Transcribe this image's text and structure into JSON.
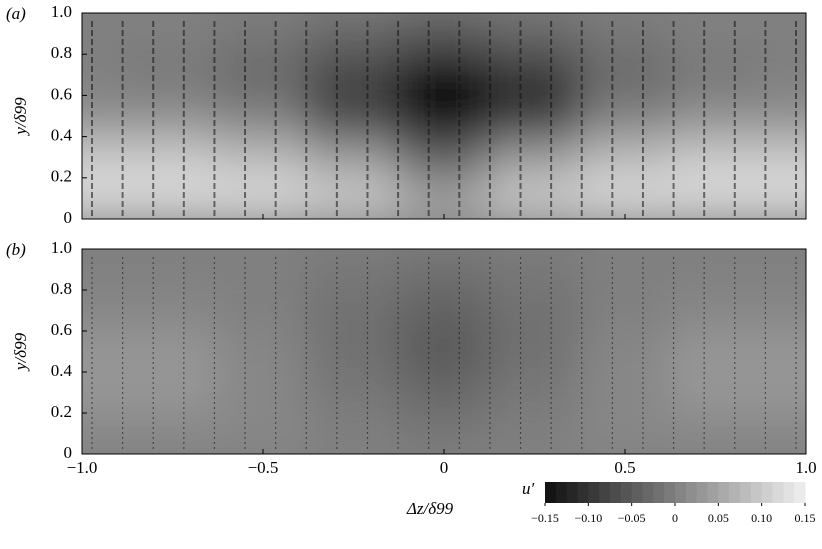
{
  "chart_data": [
    {
      "type": "heatmap",
      "label": "(a)",
      "ylabel": "y/δ99",
      "x": [
        -1,
        -0.75,
        -0.5,
        -0.25,
        0,
        0.25,
        0.5,
        0.75,
        1
      ],
      "y": [
        0.1,
        0.3,
        0.5,
        0.7,
        0.9
      ],
      "values": [
        [
          0.12,
          0.12,
          0.12,
          0.1,
          0.05,
          0.1,
          0.12,
          0.12,
          0.12
        ],
        [
          0.1,
          0.1,
          0.08,
          0.04,
          -0.04,
          0.04,
          0.08,
          0.1,
          0.1
        ],
        [
          0.02,
          0.02,
          0,
          -0.08,
          -0.15,
          -0.1,
          0,
          0.02,
          0.02
        ],
        [
          0,
          -0.01,
          -0.03,
          -0.08,
          -0.15,
          -0.1,
          -0.03,
          -0.01,
          0
        ],
        [
          0,
          0,
          -0.01,
          -0.03,
          -0.05,
          -0.03,
          -0.01,
          0,
          0
        ]
      ],
      "xlim": [
        -1,
        1
      ],
      "xticks": [
        -1,
        -0.5,
        0,
        0.5,
        1
      ],
      "ylim": [
        0,
        1
      ],
      "yticks": [
        0,
        0.2,
        0.4,
        0.6,
        0.8,
        {
          "value": 1,
          "label": "1.0"
        }
      ]
    },
    {
      "type": "heatmap",
      "label": "(b)",
      "ylabel": "y/δ99",
      "xlabel": "Δz/δ99",
      "x": [
        -1,
        -0.75,
        -0.5,
        -0.25,
        0,
        0.25,
        0.5,
        0.75,
        1
      ],
      "y": [
        0.1,
        0.3,
        0.5,
        0.7,
        0.9
      ],
      "values": [
        [
          0.01,
          0.01,
          0.01,
          0,
          -0.01,
          0,
          0.01,
          0.01,
          0.01
        ],
        [
          0.03,
          0.03,
          0.01,
          -0.01,
          -0.03,
          -0.01,
          0.01,
          0.03,
          0.03
        ],
        [
          0.03,
          0.03,
          0.01,
          -0.02,
          -0.05,
          -0.02,
          0.01,
          0.03,
          0.03
        ],
        [
          0.01,
          0.01,
          0,
          -0.02,
          -0.04,
          -0.02,
          0,
          0.01,
          0.01
        ],
        [
          0,
          0,
          0,
          -0.01,
          -0.02,
          -0.01,
          0,
          0,
          0
        ]
      ],
      "xlim": [
        -1,
        1
      ],
      "xticks": [
        {
          "value": -1,
          "label": "−1.0"
        },
        {
          "value": -0.5,
          "label": "−0.5"
        },
        0,
        0.5,
        {
          "value": 1,
          "label": "1.0"
        }
      ],
      "ylim": [
        0,
        1
      ],
      "yticks": [
        0,
        0.2,
        0.4,
        0.6,
        0.8,
        {
          "value": 1,
          "label": "1.0"
        }
      ],
      "colorbar": {
        "label": "u′",
        "clim": [
          -0.15,
          0.15
        ],
        "ticks": [
          {
            "value": -0.15,
            "label": "−0.15"
          },
          {
            "value": -0.1,
            "label": "−0.10"
          },
          {
            "value": -0.05,
            "label": "−0.05"
          },
          0,
          0.05,
          {
            "value": 0.1,
            "label": "0.10"
          },
          0.15
        ]
      }
    }
  ]
}
